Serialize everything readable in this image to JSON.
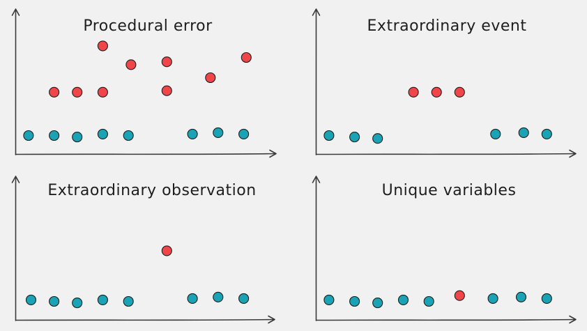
{
  "colors": {
    "normal": "#1aa3b5",
    "outlier": "#f0464a",
    "axis": "#3a3a3a",
    "title": "#1e1e1e",
    "background": "#f1f1f1"
  },
  "chart_data": [
    {
      "type": "scatter",
      "title": "Procedural error",
      "xlabel": "",
      "ylabel": "",
      "grid": false,
      "xlim": [
        0,
        10
      ],
      "ylim": [
        0,
        10
      ],
      "series": [
        {
          "kind": "normal",
          "x": [
            0.5,
            1.5,
            2.4,
            3.4,
            4.4,
            6.9,
            7.9,
            8.9
          ],
          "y": [
            1.3,
            1.3,
            1.2,
            1.4,
            1.3,
            1.4,
            1.5,
            1.4
          ]
        },
        {
          "kind": "outlier",
          "x": [
            1.5,
            2.4,
            3.4,
            3.4,
            4.5,
            5.9,
            5.9,
            7.6,
            9.0
          ],
          "y": [
            4.3,
            4.3,
            4.3,
            7.5,
            6.2,
            6.4,
            4.4,
            5.3,
            6.7
          ]
        }
      ]
    },
    {
      "type": "scatter",
      "title": "Extraordinary event",
      "xlabel": "",
      "ylabel": "",
      "grid": false,
      "xlim": [
        0,
        10
      ],
      "ylim": [
        0,
        10
      ],
      "series": [
        {
          "kind": "normal",
          "x": [
            0.5,
            1.5,
            2.4,
            7.0,
            8.1,
            9.0
          ],
          "y": [
            1.3,
            1.2,
            1.1,
            1.4,
            1.5,
            1.4
          ]
        },
        {
          "kind": "outlier",
          "x": [
            3.8,
            4.7,
            5.6
          ],
          "y": [
            4.3,
            4.3,
            4.3
          ]
        }
      ]
    },
    {
      "type": "scatter",
      "title": "Extraordinary observation",
      "xlabel": "",
      "ylabel": "",
      "grid": false,
      "xlim": [
        0,
        10
      ],
      "ylim": [
        0,
        10
      ],
      "series": [
        {
          "kind": "normal",
          "x": [
            0.6,
            1.5,
            2.4,
            3.4,
            4.4,
            6.9,
            7.9,
            8.9
          ],
          "y": [
            1.4,
            1.3,
            1.2,
            1.4,
            1.3,
            1.5,
            1.6,
            1.5
          ]
        },
        {
          "kind": "outlier",
          "x": [
            5.9
          ],
          "y": [
            4.8
          ]
        }
      ]
    },
    {
      "type": "scatter",
      "title": "Unique variables",
      "xlabel": "",
      "ylabel": "",
      "grid": false,
      "xlim": [
        0,
        10
      ],
      "ylim": [
        0,
        10
      ],
      "series": [
        {
          "kind": "normal",
          "x": [
            0.5,
            1.5,
            2.4,
            3.4,
            4.4,
            6.9,
            8.0,
            9.0
          ],
          "y": [
            1.4,
            1.3,
            1.2,
            1.4,
            1.3,
            1.5,
            1.6,
            1.5
          ]
        },
        {
          "kind": "outlier",
          "x": [
            5.6
          ],
          "y": [
            1.7
          ]
        }
      ]
    }
  ]
}
